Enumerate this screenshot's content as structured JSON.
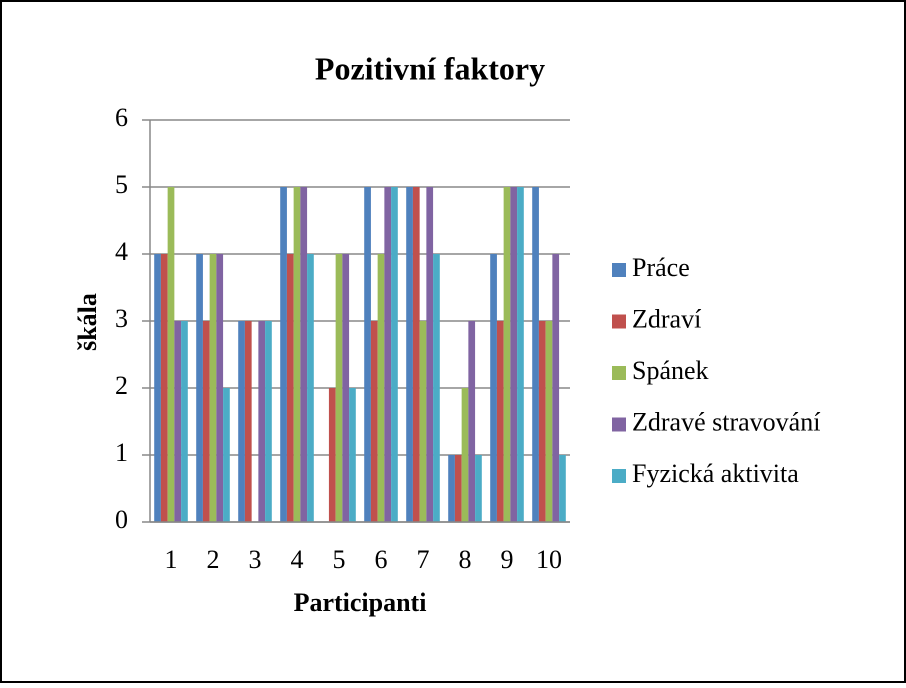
{
  "chart_data": {
    "type": "bar",
    "title": "Pozitivní faktory",
    "x_label": "Participanti",
    "y_label": "škála",
    "categories": [
      "1",
      "2",
      "3",
      "4",
      "5",
      "6",
      "7",
      "8",
      "9",
      "10"
    ],
    "series": [
      {
        "name": "Práce",
        "color": "#4f81bd",
        "values": [
          4,
          4,
          3,
          5,
          0,
          5,
          5,
          1,
          4,
          5
        ]
      },
      {
        "name": "Zdraví",
        "color": "#c0504d",
        "values": [
          4,
          3,
          3,
          4,
          2,
          3,
          5,
          1,
          3,
          3
        ]
      },
      {
        "name": "Spánek",
        "color": "#9bbb59",
        "values": [
          5,
          4,
          0,
          5,
          4,
          4,
          3,
          2,
          5,
          3
        ]
      },
      {
        "name": "Zdravé stravování",
        "color": "#8064a2",
        "values": [
          3,
          4,
          3,
          5,
          4,
          5,
          5,
          3,
          5,
          4
        ]
      },
      {
        "name": "Fyzická aktivita",
        "color": "#4bacc6",
        "values": [
          3,
          2,
          3,
          4,
          2,
          5,
          4,
          1,
          5,
          1
        ]
      }
    ],
    "ylim": [
      0,
      6
    ],
    "yticks": [
      0,
      1,
      2,
      3,
      4,
      5,
      6
    ],
    "grid": true,
    "legend": "right"
  }
}
